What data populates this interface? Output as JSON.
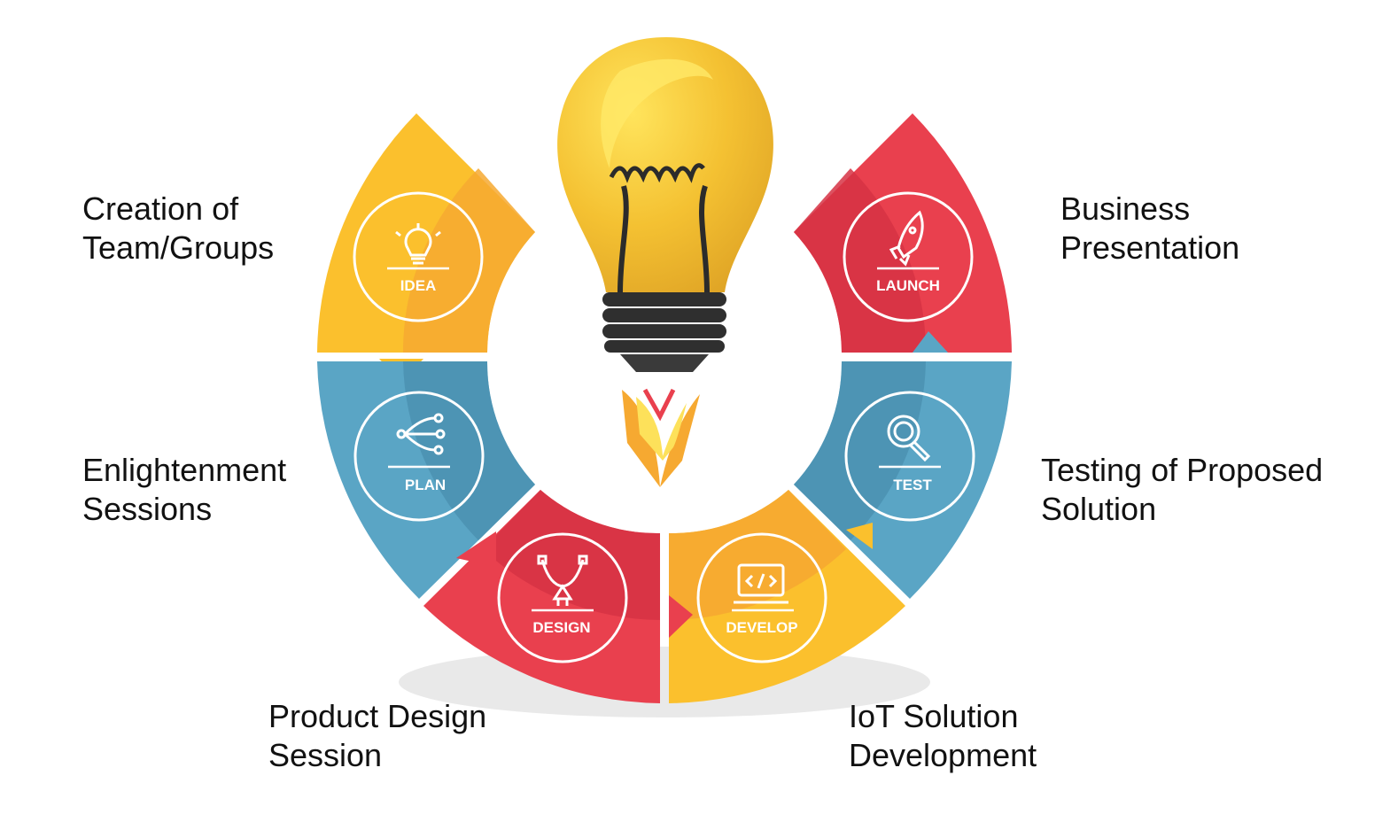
{
  "stages": [
    {
      "id": "idea",
      "badge": "IDEA",
      "caption": [
        "Creation of",
        "Team/Groups"
      ],
      "color": "#FBC02D",
      "icon": "lightbulb-icon"
    },
    {
      "id": "plan",
      "badge": "PLAN",
      "caption": [
        "Enlightenment",
        "Sessions"
      ],
      "color": "#5AA5C5",
      "icon": "branching-arrows-icon"
    },
    {
      "id": "design",
      "badge": "DESIGN",
      "caption": [
        "Product Design",
        "Session"
      ],
      "color": "#E9404E",
      "icon": "pen-tool-icon"
    },
    {
      "id": "develop",
      "badge": "DEVELOP",
      "caption": [
        "IoT Solution",
        "Development"
      ],
      "color": "#FBC02D",
      "icon": "code-monitor-icon"
    },
    {
      "id": "test",
      "badge": "TEST",
      "caption": [
        "Testing of Proposed",
        "Solution"
      ],
      "color": "#5AA5C5",
      "icon": "magnifier-icon"
    },
    {
      "id": "launch",
      "badge": "LAUNCH",
      "caption": [
        "Business",
        "Presentation"
      ],
      "color": "#E9404E",
      "icon": "rocket-icon"
    }
  ],
  "centerpiece": {
    "icon": "lightbulb-rocket-icon"
  }
}
